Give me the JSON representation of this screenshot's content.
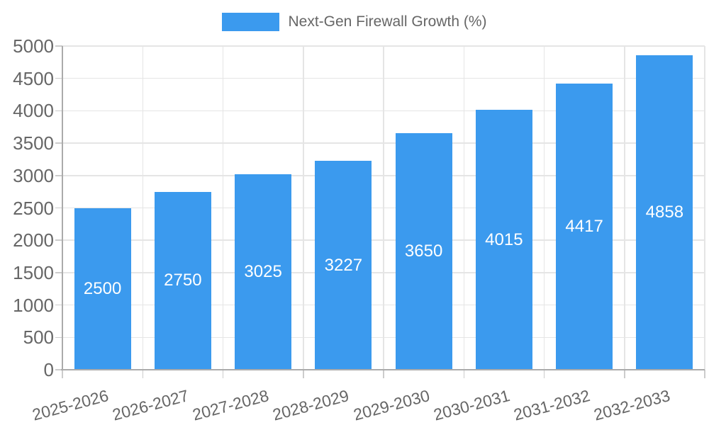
{
  "legend": {
    "label": "Next-Gen Firewall Growth (%)"
  },
  "colors": {
    "bar": "#3B9AEE",
    "grid": "#E5E5E5",
    "axis_border": "#ABABAB",
    "tick": "#CCCCCC",
    "axis_text": "#666666",
    "value_text": "#FFFFFF"
  },
  "chart_data": {
    "type": "bar",
    "title": "",
    "legend_entries": [
      "Next-Gen Firewall Growth (%)"
    ],
    "legend_position": "top",
    "categories": [
      "2025-2026",
      "2026-2027",
      "2027-2028",
      "2028-2029",
      "2029-2030",
      "2030-2031",
      "2031-2032",
      "2032-2033"
    ],
    "values": [
      2500,
      2750,
      3025,
      3227,
      3650,
      4015,
      4417,
      4858
    ],
    "y_ticks": [
      0,
      500,
      1000,
      1500,
      2000,
      2500,
      3000,
      3500,
      4000,
      4500,
      5000
    ],
    "ylim": [
      0,
      5000
    ],
    "xlabel": "",
    "ylabel": "",
    "grid": true,
    "x_tick_rotation_deg": -15,
    "value_labels_shown": true
  }
}
